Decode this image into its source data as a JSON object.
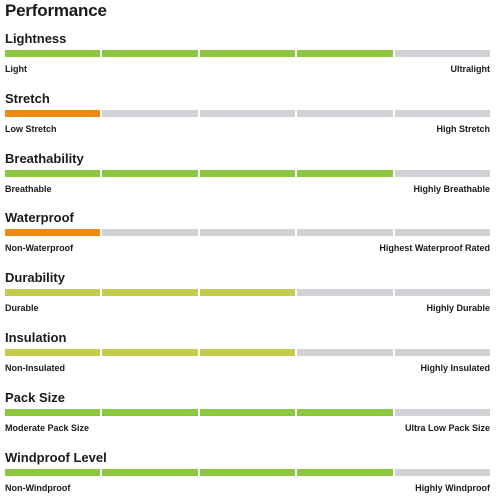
{
  "page_title": "Performance",
  "segments_total": 5,
  "colors": {
    "green": "#8dc63f",
    "orange": "#ee8a12",
    "olive": "#c5cc4c",
    "empty": "#d2d2d6"
  },
  "metrics": [
    {
      "name": "Lightness",
      "min_label": "Light",
      "max_label": "Ultralight",
      "rating": 4,
      "color": "green"
    },
    {
      "name": "Stretch",
      "min_label": "Low Stretch",
      "max_label": "High Stretch",
      "rating": 1,
      "color": "orange"
    },
    {
      "name": "Breathability",
      "min_label": "Breathable",
      "max_label": "Highly Breathable",
      "rating": 4,
      "color": "green"
    },
    {
      "name": "Waterproof",
      "min_label": "Non-Waterproof",
      "max_label": "Highest Waterproof Rated",
      "rating": 1,
      "color": "orange"
    },
    {
      "name": "Durability",
      "min_label": "Durable",
      "max_label": "Highly Durable",
      "rating": 3,
      "color": "olive"
    },
    {
      "name": "Insulation",
      "min_label": "Non-Insulated",
      "max_label": "Highly Insulated",
      "rating": 3,
      "color": "olive"
    },
    {
      "name": "Pack Size",
      "min_label": "Moderate Pack Size",
      "max_label": "Ultra Low Pack Size",
      "rating": 4,
      "color": "green"
    },
    {
      "name": "Windproof Level",
      "min_label": "Non-Windproof",
      "max_label": "Highly Windproof",
      "rating": 4,
      "color": "green"
    }
  ]
}
